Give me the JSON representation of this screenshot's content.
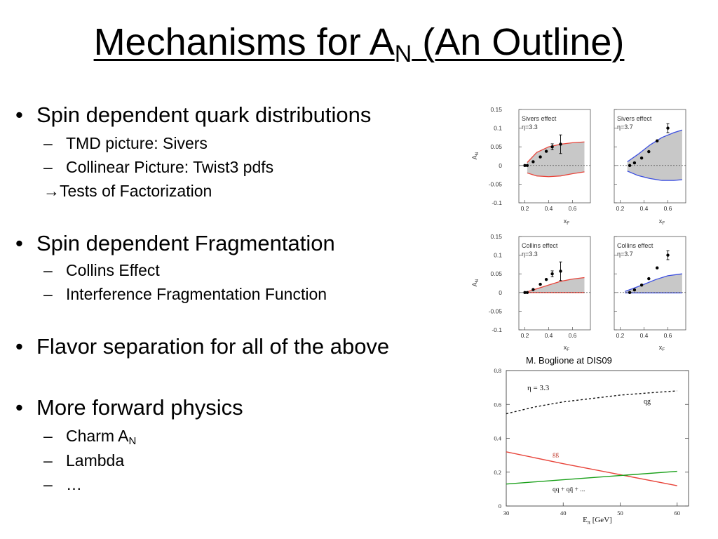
{
  "slide": {
    "title_main": "Mechanisms for A",
    "title_sub": "N",
    "title_rest": " (An Outline)"
  },
  "bullets": [
    {
      "text": "Spin dependent quark distributions",
      "children": [
        "TMD picture: Sivers",
        "Collinear Picture: Twist3 pdfs"
      ],
      "arrow_line": "Tests of Factorization"
    },
    {
      "text": "Spin dependent Fragmentation",
      "children": [
        "Collins Effect",
        "Interference Fragmentation Function"
      ]
    },
    {
      "text": "Flavor separation for all of the above"
    },
    {
      "text": "More forward physics",
      "children": [
        "Charm A",
        "Lambda",
        "…"
      ],
      "charm_sub": "N"
    }
  ],
  "symbols": {
    "bullet": "•",
    "dash": "–",
    "arrow": "→"
  },
  "caption": "M. Boglione at DIS09",
  "chart_data": [
    {
      "type": "scatter",
      "title": "Sivers effect",
      "subtitle": "η=3.3",
      "xlabel": "x",
      "xlabel_sub": "F",
      "ylabel": "A",
      "ylabel_sub": "N",
      "xlim": [
        0.15,
        0.75
      ],
      "ylim": [
        -0.1,
        0.15
      ],
      "yticks": [
        "0.15",
        "0.1",
        "0.05",
        "0",
        "-0.05",
        "-0.1"
      ],
      "xticks": [
        "0.2",
        "0.4",
        "0.6"
      ],
      "band_color": "#e8443a",
      "points": [
        {
          "x": 0.2,
          "y": 0.0,
          "err": 0.002
        },
        {
          "x": 0.22,
          "y": 0.0,
          "err": 0.002
        },
        {
          "x": 0.27,
          "y": 0.01,
          "err": 0.003
        },
        {
          "x": 0.33,
          "y": 0.023,
          "err": 0.004
        },
        {
          "x": 0.38,
          "y": 0.038,
          "err": 0.005
        },
        {
          "x": 0.43,
          "y": 0.05,
          "err": 0.008
        },
        {
          "x": 0.5,
          "y": 0.057,
          "err": 0.025
        }
      ],
      "band_x": [
        0.22,
        0.3,
        0.4,
        0.5,
        0.6,
        0.7
      ],
      "band_upper": [
        0.008,
        0.035,
        0.05,
        0.057,
        0.061,
        0.063
      ],
      "band_lower": [
        -0.02,
        -0.028,
        -0.03,
        -0.028,
        -0.022,
        -0.017
      ]
    },
    {
      "type": "scatter",
      "title": "Sivers effect",
      "subtitle": "η=3.7",
      "xlabel": "x",
      "xlabel_sub": "F",
      "xlim": [
        0.15,
        0.75
      ],
      "ylim": [
        -0.1,
        0.15
      ],
      "xticks": [
        "0.2",
        "0.4",
        "0.6"
      ],
      "band_color": "#3b4ee0",
      "points": [
        {
          "x": 0.28,
          "y": 0.0,
          "err": 0.002
        },
        {
          "x": 0.32,
          "y": 0.007,
          "err": 0.003
        },
        {
          "x": 0.38,
          "y": 0.02,
          "err": 0.003
        },
        {
          "x": 0.44,
          "y": 0.037,
          "err": 0.004
        },
        {
          "x": 0.51,
          "y": 0.066,
          "err": 0.005
        },
        {
          "x": 0.6,
          "y": 0.1,
          "err": 0.012
        }
      ],
      "band_x": [
        0.26,
        0.35,
        0.45,
        0.55,
        0.65,
        0.72
      ],
      "band_upper": [
        0.01,
        0.03,
        0.055,
        0.075,
        0.088,
        0.095
      ],
      "band_lower": [
        -0.015,
        -0.027,
        -0.035,
        -0.04,
        -0.04,
        -0.038
      ]
    },
    {
      "type": "scatter",
      "title": "Collins effect",
      "subtitle": "η=3.3",
      "xlabel": "x",
      "xlabel_sub": "F",
      "ylabel": "A",
      "ylabel_sub": "N",
      "xlim": [
        0.15,
        0.75
      ],
      "ylim": [
        -0.1,
        0.15
      ],
      "yticks": [
        "0.15",
        "0.1",
        "0.05",
        "0",
        "-0.05",
        "-0.1"
      ],
      "xticks": [
        "0.2",
        "0.4",
        "0.6"
      ],
      "band_color": "#e8443a",
      "points": [
        {
          "x": 0.2,
          "y": 0.0,
          "err": 0.002
        },
        {
          "x": 0.22,
          "y": 0.0,
          "err": 0.002
        },
        {
          "x": 0.27,
          "y": 0.008,
          "err": 0.003
        },
        {
          "x": 0.33,
          "y": 0.022,
          "err": 0.004
        },
        {
          "x": 0.38,
          "y": 0.035,
          "err": 0.005
        },
        {
          "x": 0.43,
          "y": 0.05,
          "err": 0.008
        },
        {
          "x": 0.5,
          "y": 0.057,
          "err": 0.025
        }
      ],
      "band_x": [
        0.22,
        0.3,
        0.4,
        0.5,
        0.6,
        0.7
      ],
      "band_upper": [
        0.002,
        0.01,
        0.02,
        0.03,
        0.036,
        0.04
      ],
      "band_lower": [
        0.0,
        0.0,
        0.0,
        0.0,
        0.0,
        0.0
      ]
    },
    {
      "type": "scatter",
      "title": "Collins effect",
      "subtitle": "η=3.7",
      "xlabel": "x",
      "xlabel_sub": "F",
      "xlim": [
        0.15,
        0.75
      ],
      "ylim": [
        -0.1,
        0.15
      ],
      "xticks": [
        "0.2",
        "0.4",
        "0.6"
      ],
      "band_color": "#3b4ee0",
      "points": [
        {
          "x": 0.28,
          "y": 0.0,
          "err": 0.002
        },
        {
          "x": 0.32,
          "y": 0.007,
          "err": 0.003
        },
        {
          "x": 0.38,
          "y": 0.02,
          "err": 0.003
        },
        {
          "x": 0.44,
          "y": 0.037,
          "err": 0.004
        },
        {
          "x": 0.51,
          "y": 0.066,
          "err": 0.005
        },
        {
          "x": 0.6,
          "y": 0.1,
          "err": 0.012
        }
      ],
      "band_x": [
        0.24,
        0.3,
        0.4,
        0.5,
        0.6,
        0.72
      ],
      "band_upper": [
        0.003,
        0.01,
        0.022,
        0.035,
        0.045,
        0.05
      ],
      "band_lower": [
        -0.001,
        -0.001,
        -0.001,
        -0.001,
        -0.001,
        -0.001
      ]
    },
    {
      "type": "line",
      "annotation": "η = 3.3",
      "xlabel": "E",
      "xlabel_sub": "π",
      "xlabel_unit": " [GeV]",
      "xlim": [
        30,
        62
      ],
      "ylim": [
        0,
        0.8
      ],
      "xticks": [
        30,
        40,
        50,
        60
      ],
      "xtick_labels": [
        "30",
        "40",
        "50",
        "60"
      ],
      "yticks": [
        0,
        0.2,
        0.4,
        0.6,
        0.8
      ],
      "ytick_labels": [
        "0",
        "0.2",
        "0.4",
        "0.6",
        "0.8"
      ],
      "series": [
        {
          "name": "qg",
          "color": "#111111",
          "dash": "3,3",
          "x": [
            30,
            35,
            40,
            45,
            50,
            55,
            60
          ],
          "y": [
            0.545,
            0.585,
            0.615,
            0.635,
            0.655,
            0.668,
            0.68
          ]
        },
        {
          "name": "gg",
          "color": "#e8443a",
          "dash": "",
          "x": [
            30,
            40,
            50,
            60
          ],
          "y": [
            0.32,
            0.25,
            0.185,
            0.12
          ]
        },
        {
          "name": "qq + qq̄ + ...",
          "color": "#1aa01a",
          "dash": "",
          "x": [
            30,
            40,
            50,
            60
          ],
          "y": [
            0.13,
            0.155,
            0.18,
            0.205
          ]
        }
      ]
    }
  ]
}
